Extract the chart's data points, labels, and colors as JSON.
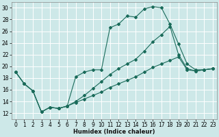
{
  "title": "",
  "xlabel": "Humidex (Indice chaleur)",
  "bg_color": "#cde8e8",
  "line_color": "#1a6b5a",
  "grid_color": "#ffffff",
  "xlim": [
    -0.5,
    23.5
  ],
  "ylim": [
    11,
    31
  ],
  "yticks": [
    12,
    14,
    16,
    18,
    20,
    22,
    24,
    26,
    28,
    30
  ],
  "xticks": [
    0,
    1,
    2,
    3,
    4,
    5,
    6,
    7,
    8,
    9,
    10,
    11,
    12,
    13,
    14,
    15,
    16,
    17,
    18,
    19,
    20,
    21,
    22,
    23
  ],
  "line1_x": [
    0,
    1,
    2,
    3,
    4,
    5,
    6,
    7,
    8,
    9,
    10,
    11,
    12,
    13,
    14,
    15,
    16,
    17,
    18,
    19,
    20,
    21,
    22,
    23
  ],
  "line1_y": [
    19.0,
    17.0,
    15.8,
    12.2,
    13.0,
    12.8,
    13.2,
    18.2,
    19.0,
    19.4,
    19.4,
    26.6,
    27.2,
    28.6,
    28.4,
    29.8,
    30.2,
    30.0,
    27.2,
    23.8,
    20.4,
    19.4,
    19.4,
    19.6
  ],
  "line2_x": [
    0,
    1,
    2,
    3,
    4,
    5,
    6,
    7,
    8,
    9,
    10,
    11,
    12,
    13,
    14,
    15,
    16,
    17,
    18,
    19,
    20,
    21,
    22,
    23
  ],
  "line2_y": [
    19.0,
    17.0,
    15.8,
    12.2,
    13.0,
    12.8,
    13.2,
    14.0,
    15.0,
    16.2,
    17.4,
    18.6,
    19.6,
    20.4,
    21.2,
    22.6,
    24.2,
    25.4,
    26.8,
    22.0,
    19.6,
    19.2,
    19.4,
    19.6
  ],
  "line3_x": [
    0,
    1,
    2,
    3,
    4,
    5,
    6,
    7,
    8,
    9,
    10,
    11,
    12,
    13,
    14,
    15,
    16,
    17,
    18,
    19,
    20,
    21,
    22,
    23
  ],
  "line3_y": [
    19.0,
    17.0,
    15.8,
    12.2,
    13.0,
    12.8,
    13.2,
    13.8,
    14.4,
    15.0,
    15.6,
    16.4,
    17.0,
    17.6,
    18.2,
    19.0,
    19.8,
    20.4,
    21.0,
    21.6,
    19.4,
    19.2,
    19.4,
    19.6
  ],
  "tick_fontsize": 5.5,
  "xlabel_fontsize": 6.0,
  "marker_size": 2.0,
  "line_width": 0.8
}
